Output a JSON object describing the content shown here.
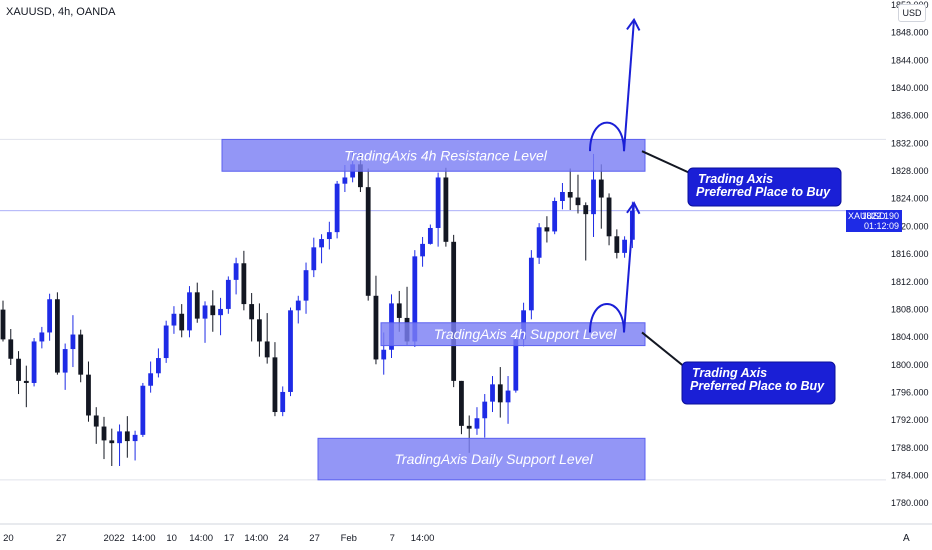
{
  "header": {
    "legend": "XAUUSD, 4h, OANDA"
  },
  "axis": {
    "currency": "USD",
    "auto_label": "A"
  },
  "price_tag": {
    "symbol": "XAUUSD",
    "value": "1822.190",
    "countdown": "01:12:09"
  },
  "colors": {
    "up": "#1e2be6",
    "down": "#131722",
    "zone": "#7b7ff4",
    "callout": "#1a1fd6"
  },
  "chart_data": {
    "type": "candlestick",
    "symbol": "XAUUSD",
    "timeframe": "4h",
    "source": "OANDA",
    "ylim": [
      1778,
      1852
    ],
    "yticks": [
      1780,
      1784,
      1788,
      1792,
      1796,
      1800,
      1804,
      1808,
      1812,
      1816,
      1820,
      1824,
      1828,
      1832,
      1836,
      1840,
      1844,
      1848,
      1852
    ],
    "ytick_labels": [
      "1780.000",
      "1784.000",
      "1788.000",
      "1792.000",
      "1796.000",
      "1800.000",
      "1804.000",
      "1808.000",
      "1812.000",
      "1816.000",
      "1820.000",
      "1824.000",
      "1828.000",
      "1832.000",
      "1836.000",
      "1840.000",
      "1844.000",
      "1848.000",
      "1852.000"
    ],
    "xticks": [
      {
        "label": "20",
        "x": 0.7
      },
      {
        "label": "27",
        "x": 7.5
      },
      {
        "label": "2022",
        "x": 14.3
      },
      {
        "label": "14:00",
        "x": 18.1
      },
      {
        "label": "10",
        "x": 21.7
      },
      {
        "label": "14:00",
        "x": 25.5
      },
      {
        "label": "17",
        "x": 29.1
      },
      {
        "label": "14:00",
        "x": 32.6
      },
      {
        "label": "24",
        "x": 36.1
      },
      {
        "label": "27",
        "x": 40.1
      },
      {
        "label": "Feb",
        "x": 44.5
      },
      {
        "label": "7",
        "x": 50.1
      },
      {
        "label": "14:00",
        "x": 54.0
      }
    ],
    "candles": [
      [
        1807.9,
        1809.2,
        1803.3,
        1803.6
      ],
      [
        1803.6,
        1805.1,
        1799.9,
        1800.8
      ],
      [
        1800.8,
        1801.9,
        1795.7,
        1797.6
      ],
      [
        1797.6,
        1799.8,
        1793.8,
        1797.3
      ],
      [
        1797.3,
        1803.8,
        1796.8,
        1803.3
      ],
      [
        1803.3,
        1805.4,
        1802.3,
        1804.6
      ],
      [
        1804.6,
        1810.2,
        1803.4,
        1809.4
      ],
      [
        1809.4,
        1810.4,
        1798.5,
        1798.8
      ],
      [
        1798.8,
        1803.0,
        1796.3,
        1802.2
      ],
      [
        1802.2,
        1807.1,
        1799.6,
        1804.3
      ],
      [
        1804.3,
        1805.0,
        1797.4,
        1798.5
      ],
      [
        1798.5,
        1800.4,
        1791.7,
        1792.6
      ],
      [
        1792.6,
        1793.8,
        1788.5,
        1791.0
      ],
      [
        1791.0,
        1792.4,
        1786.3,
        1789.0
      ],
      [
        1789.0,
        1790.7,
        1785.3,
        1788.6
      ],
      [
        1788.6,
        1791.3,
        1785.3,
        1790.3
      ],
      [
        1790.3,
        1792.5,
        1786.5,
        1788.9
      ],
      [
        1788.9,
        1790.4,
        1786.1,
        1789.8
      ],
      [
        1789.8,
        1797.3,
        1789.5,
        1796.9
      ],
      [
        1796.9,
        1800.4,
        1795.9,
        1798.7
      ],
      [
        1798.7,
        1802.3,
        1798.1,
        1800.9
      ],
      [
        1800.9,
        1806.3,
        1800.2,
        1805.6
      ],
      [
        1805.6,
        1808.4,
        1804.4,
        1807.3
      ],
      [
        1807.3,
        1808.7,
        1803.9,
        1804.9
      ],
      [
        1804.9,
        1811.3,
        1803.9,
        1810.4
      ],
      [
        1810.4,
        1811.8,
        1806.0,
        1806.6
      ],
      [
        1806.6,
        1809.1,
        1803.1,
        1808.5
      ],
      [
        1808.5,
        1810.7,
        1804.7,
        1807.1
      ],
      [
        1807.1,
        1809.6,
        1804.2,
        1808.0
      ],
      [
        1808.0,
        1812.7,
        1807.3,
        1812.2
      ],
      [
        1812.2,
        1815.4,
        1810.1,
        1814.6
      ],
      [
        1814.6,
        1816.4,
        1807.8,
        1808.7
      ],
      [
        1808.7,
        1810.3,
        1803.3,
        1806.5
      ],
      [
        1806.5,
        1808.8,
        1801.1,
        1803.3
      ],
      [
        1803.3,
        1807.4,
        1800.1,
        1801.0
      ],
      [
        1801.0,
        1803.2,
        1792.5,
        1793.1
      ],
      [
        1793.1,
        1796.8,
        1792.5,
        1796.0
      ],
      [
        1796.0,
        1808.2,
        1795.4,
        1807.8
      ],
      [
        1807.8,
        1809.9,
        1805.9,
        1809.2
      ],
      [
        1809.2,
        1814.7,
        1807.3,
        1813.6
      ],
      [
        1813.6,
        1818.3,
        1812.6,
        1816.9
      ],
      [
        1816.9,
        1818.8,
        1814.6,
        1818.1
      ],
      [
        1818.1,
        1820.6,
        1816.6,
        1819.1
      ],
      [
        1819.1,
        1826.5,
        1818.2,
        1826.1
      ],
      [
        1826.1,
        1828.8,
        1824.9,
        1827.0
      ],
      [
        1827.0,
        1830.9,
        1826.3,
        1828.9
      ],
      [
        1828.9,
        1830.4,
        1824.9,
        1825.6
      ],
      [
        1825.6,
        1828.3,
        1809.2,
        1809.9
      ],
      [
        1809.9,
        1812.8,
        1800.0,
        1800.7
      ],
      [
        1800.7,
        1804.6,
        1798.5,
        1802.1
      ],
      [
        1802.1,
        1810.1,
        1800.9,
        1808.8
      ],
      [
        1808.8,
        1810.6,
        1804.7,
        1806.7
      ],
      [
        1806.7,
        1811.2,
        1802.8,
        1803.3
      ],
      [
        1803.3,
        1816.5,
        1802.5,
        1815.6
      ],
      [
        1815.6,
        1818.4,
        1814.1,
        1817.4
      ],
      [
        1817.4,
        1820.2,
        1817.3,
        1819.7
      ],
      [
        1819.7,
        1827.7,
        1817.0,
        1827.0
      ],
      [
        1827.0,
        1828.4,
        1817.0,
        1817.7
      ],
      [
        1817.7,
        1818.7,
        1796.7,
        1797.6
      ],
      [
        1797.6,
        1797.6,
        1789.9,
        1791.1
      ],
      [
        1791.1,
        1792.6,
        1787.2,
        1790.7
      ],
      [
        1790.7,
        1793.8,
        1789.8,
        1792.2
      ],
      [
        1792.2,
        1795.7,
        1789.4,
        1794.6
      ],
      [
        1794.6,
        1798.3,
        1793.1,
        1797.1
      ],
      [
        1797.1,
        1799.6,
        1792.3,
        1794.5
      ],
      [
        1794.5,
        1798.3,
        1791.4,
        1796.2
      ],
      [
        1796.2,
        1804.3,
        1795.9,
        1803.6
      ],
      [
        1803.6,
        1808.9,
        1802.6,
        1807.8
      ],
      [
        1807.8,
        1816.5,
        1806.5,
        1815.4
      ],
      [
        1815.4,
        1820.4,
        1814.5,
        1819.8
      ],
      [
        1819.8,
        1821.4,
        1817.6,
        1819.2
      ],
      [
        1819.2,
        1824.1,
        1818.8,
        1823.6
      ],
      [
        1823.6,
        1826.2,
        1822.4,
        1824.9
      ],
      [
        1824.9,
        1828.3,
        1822.3,
        1824.1
      ],
      [
        1824.1,
        1827.4,
        1821.8,
        1823.0
      ],
      [
        1823.0,
        1823.4,
        1815.0,
        1821.7
      ],
      [
        1821.7,
        1830.4,
        1818.4,
        1826.7
      ],
      [
        1826.7,
        1828.9,
        1819.6,
        1824.1
      ],
      [
        1824.1,
        1824.7,
        1817.2,
        1818.5
      ],
      [
        1818.5,
        1819.5,
        1815.3,
        1816.1
      ],
      [
        1816.1,
        1818.5,
        1815.4,
        1818.0
      ],
      [
        1818.0,
        1823.5,
        1816.8,
        1822.2
      ]
    ],
    "annotations": [
      {
        "type": "zone",
        "label": "TradingAxis 4h Resistance Level",
        "price_range": [
          1827.9,
          1832.5
        ]
      },
      {
        "type": "zone",
        "label": "TradingAxis 4h Support Level",
        "price_range": [
          1802.7,
          1806.0
        ]
      },
      {
        "type": "zone",
        "label": "TradingAxis Daily Support Level",
        "price_range": [
          1783.3,
          1789.3
        ]
      },
      {
        "type": "callout",
        "lines": [
          "Trading Axis",
          "Preferred Place to Buy"
        ],
        "points_to_price": 1830.8
      },
      {
        "type": "callout",
        "lines": [
          "Trading Axis",
          "Preferred Place to Buy"
        ],
        "points_to_price": 1804.6
      }
    ]
  }
}
